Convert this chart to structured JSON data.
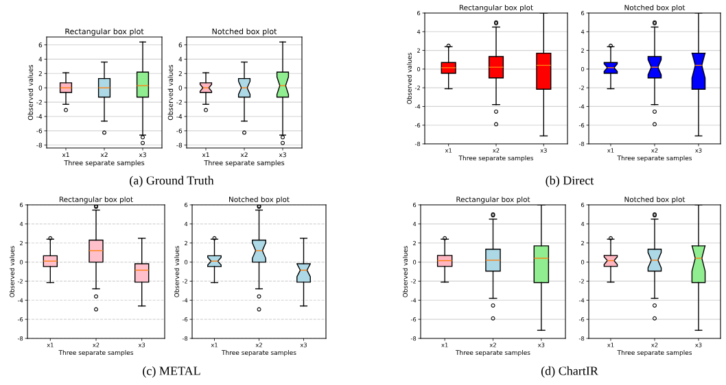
{
  "chart_data": [
    {
      "type": "box",
      "title": "Rectangular box plot",
      "xlabel": "Three separate samples",
      "ylabel": "Observed values",
      "categories": [
        "x1",
        "x2",
        "x3"
      ],
      "colors": [
        "#ffb6c1",
        "#add8e6",
        "#90ee90"
      ],
      "ylim": [
        -8.4,
        7.1
      ],
      "yticks": [
        -8,
        -6,
        -4,
        -2,
        0,
        2,
        4,
        6
      ],
      "grid": "y",
      "annotations": [
        "(a) Ground Truth"
      ],
      "boxes": [
        {
          "low": -2.3,
          "q1": -0.65,
          "median": 0,
          "q3": 0.7,
          "high": 2.1,
          "outliers": [
            -3.1
          ]
        },
        {
          "low": -4.65,
          "q1": -1.3,
          "median": 0,
          "q3": 1.3,
          "high": 3.6,
          "outliers": [
            -6.25
          ]
        },
        {
          "low": -6.6,
          "q1": -1.3,
          "median": 0.3,
          "q3": 2.2,
          "high": 6.4,
          "outliers": [
            -6.9,
            -7.7
          ]
        }
      ]
    },
    {
      "type": "box",
      "title": "Notched box plot",
      "xlabel": "Three separate samples",
      "ylabel": "Observed values",
      "categories": [
        "x1",
        "x2",
        "x3"
      ],
      "colors": [
        "#ffb6c1",
        "#add8e6",
        "#90ee90"
      ],
      "ylim": [
        -8.4,
        7.1
      ],
      "yticks": [
        -8,
        -6,
        -4,
        -2,
        0,
        2,
        4,
        6
      ],
      "grid": "y",
      "boxes": [
        {
          "low": -2.3,
          "q1": -0.65,
          "median": 0,
          "q3": 0.7,
          "high": 2.1,
          "outliers": [
            -3.1
          ]
        },
        {
          "low": -4.65,
          "q1": -1.3,
          "median": 0,
          "q3": 1.3,
          "high": 3.6,
          "outliers": [
            -6.25
          ]
        },
        {
          "low": -6.6,
          "q1": -1.3,
          "median": 0.3,
          "q3": 2.2,
          "high": 6.4,
          "outliers": [
            -6.9,
            -7.7
          ]
        }
      ]
    },
    {
      "type": "box",
      "title": "Rectangular box plot",
      "xlabel": "Three separate samples",
      "ylabel": "Observed values",
      "categories": [
        "x1",
        "x2",
        "x3"
      ],
      "colors": [
        "#ff0000",
        "#ff0000",
        "#ff0000"
      ],
      "ylim": [
        -8,
        6
      ],
      "yticks": [
        -8,
        -6,
        -4,
        -2,
        0,
        2,
        4,
        6
      ],
      "grid": "y",
      "annotations": [
        "(b) Direct"
      ],
      "boxes": [
        {
          "low": -2.1,
          "q1": -0.45,
          "median": 0.15,
          "q3": 0.7,
          "high": 2.4,
          "outliers": [
            2.5
          ]
        },
        {
          "low": -3.8,
          "q1": -0.95,
          "median": 0.2,
          "q3": 1.35,
          "high": 4.5,
          "outliers": [
            4.9,
            5.0,
            -4.55,
            -5.9
          ]
        },
        {
          "low": -7.15,
          "q1": -2.15,
          "median": 0.4,
          "q3": 1.7,
          "high": 6
        }
      ]
    },
    {
      "type": "box",
      "title": "Notched box plot",
      "xlabel": "Three separate samples",
      "categories": [
        "x1",
        "x2",
        "x3"
      ],
      "colors": [
        "#0000ff",
        "#0000ff",
        "#0000ff"
      ],
      "ylim": [
        -8,
        6
      ],
      "yticks": [
        -8,
        -6,
        -4,
        -2,
        0,
        2,
        4,
        6
      ],
      "grid": "y",
      "boxes": [
        {
          "low": -2.1,
          "q1": -0.45,
          "median": 0.15,
          "q3": 0.7,
          "high": 2.4,
          "outliers": [
            2.5
          ]
        },
        {
          "low": -3.8,
          "q1": -0.95,
          "median": 0.2,
          "q3": 1.35,
          "high": 4.5,
          "outliers": [
            4.9,
            5.0,
            -4.55,
            -5.9
          ]
        },
        {
          "low": -7.15,
          "q1": -2.15,
          "median": 0.4,
          "q3": 1.7,
          "high": 6
        }
      ]
    },
    {
      "type": "box",
      "title": "Rectangular box plot",
      "xlabel": "Three separate samples",
      "ylabel": "Observed values",
      "categories": [
        "x1",
        "x2",
        "x3"
      ],
      "colors": [
        "#ffc0cb",
        "#ffc0cb",
        "#ffc0cb"
      ],
      "ylim": [
        -8,
        6
      ],
      "yticks": [
        -8,
        -6,
        -4,
        -2,
        0,
        2,
        4,
        6
      ],
      "grid": "y",
      "line_style": "dashed",
      "annotations": [
        "(c) METAL"
      ],
      "boxes": [
        {
          "low": -2.15,
          "q1": -0.47,
          "median": 0.1,
          "q3": 0.66,
          "high": 2.4,
          "outliers": [
            2.5
          ]
        },
        {
          "low": -2.8,
          "q1": 0.0,
          "median": 1.2,
          "q3": 2.3,
          "high": 5.45,
          "outliers": [
            5.8,
            5.9,
            -3.6,
            -4.95
          ]
        },
        {
          "low": -4.6,
          "q1": -2.1,
          "median": -0.85,
          "q3": -0.17,
          "high": 2.5
        }
      ]
    },
    {
      "type": "box",
      "title": "Notched box plot",
      "xlabel": "Three separate samples",
      "ylabel": "Observed values",
      "categories": [
        "x1",
        "x2",
        "x3"
      ],
      "colors": [
        "#add8e6",
        "#add8e6",
        "#add8e6"
      ],
      "ylim": [
        -8,
        6
      ],
      "yticks": [
        -8,
        -6,
        -4,
        -2,
        0,
        2,
        4,
        6
      ],
      "grid": "y",
      "line_style": "dashed",
      "boxes": [
        {
          "low": -2.15,
          "q1": -0.47,
          "median": 0.1,
          "q3": 0.66,
          "high": 2.4,
          "outliers": [
            2.5
          ]
        },
        {
          "low": -2.8,
          "q1": 0.0,
          "median": 1.2,
          "q3": 2.3,
          "high": 5.45,
          "outliers": [
            5.8,
            5.9,
            -3.6,
            -4.95
          ]
        },
        {
          "low": -4.6,
          "q1": -2.1,
          "median": -0.85,
          "q3": -0.17,
          "high": 2.5
        }
      ]
    },
    {
      "type": "box",
      "title": "Rectangular box plot",
      "xlabel": "Three separate samples",
      "ylabel": "Observed values",
      "categories": [
        "x1",
        "x2",
        "x3"
      ],
      "colors": [
        "#ffb6c1",
        "#add8e6",
        "#90ee90"
      ],
      "ylim": [
        -8,
        6
      ],
      "yticks": [
        -8,
        -6,
        -4,
        -2,
        0,
        2,
        4,
        6
      ],
      "grid": "y",
      "annotations": [
        "(d) ChartIR"
      ],
      "boxes": [
        {
          "low": -2.1,
          "q1": -0.45,
          "median": 0.15,
          "q3": 0.7,
          "high": 2.4,
          "outliers": [
            2.5
          ]
        },
        {
          "low": -3.8,
          "q1": -0.95,
          "median": 0.2,
          "q3": 1.35,
          "high": 4.5,
          "outliers": [
            4.9,
            5.0,
            -4.55,
            -5.9
          ]
        },
        {
          "low": -7.15,
          "q1": -2.15,
          "median": 0.4,
          "q3": 1.7,
          "high": 6
        }
      ]
    },
    {
      "type": "box",
      "title": "Notched box plot",
      "xlabel": "Three separate samples",
      "categories": [
        "x1",
        "x2",
        "x3"
      ],
      "colors": [
        "#ffb6c1",
        "#add8e6",
        "#90ee90"
      ],
      "ylim": [
        -8,
        6
      ],
      "yticks": [
        -8,
        -6,
        -4,
        -2,
        0,
        2,
        4,
        6
      ],
      "grid": "y",
      "boxes": [
        {
          "low": -2.1,
          "q1": -0.45,
          "median": 0.15,
          "q3": 0.7,
          "high": 2.4,
          "outliers": [
            2.5
          ]
        },
        {
          "low": -3.8,
          "q1": -0.95,
          "median": 0.2,
          "q3": 1.35,
          "high": 4.5,
          "outliers": [
            4.9,
            5.0,
            -4.55,
            -5.9
          ]
        },
        {
          "low": -7.15,
          "q1": -2.15,
          "median": 0.4,
          "q3": 1.7,
          "high": 6
        }
      ]
    }
  ]
}
